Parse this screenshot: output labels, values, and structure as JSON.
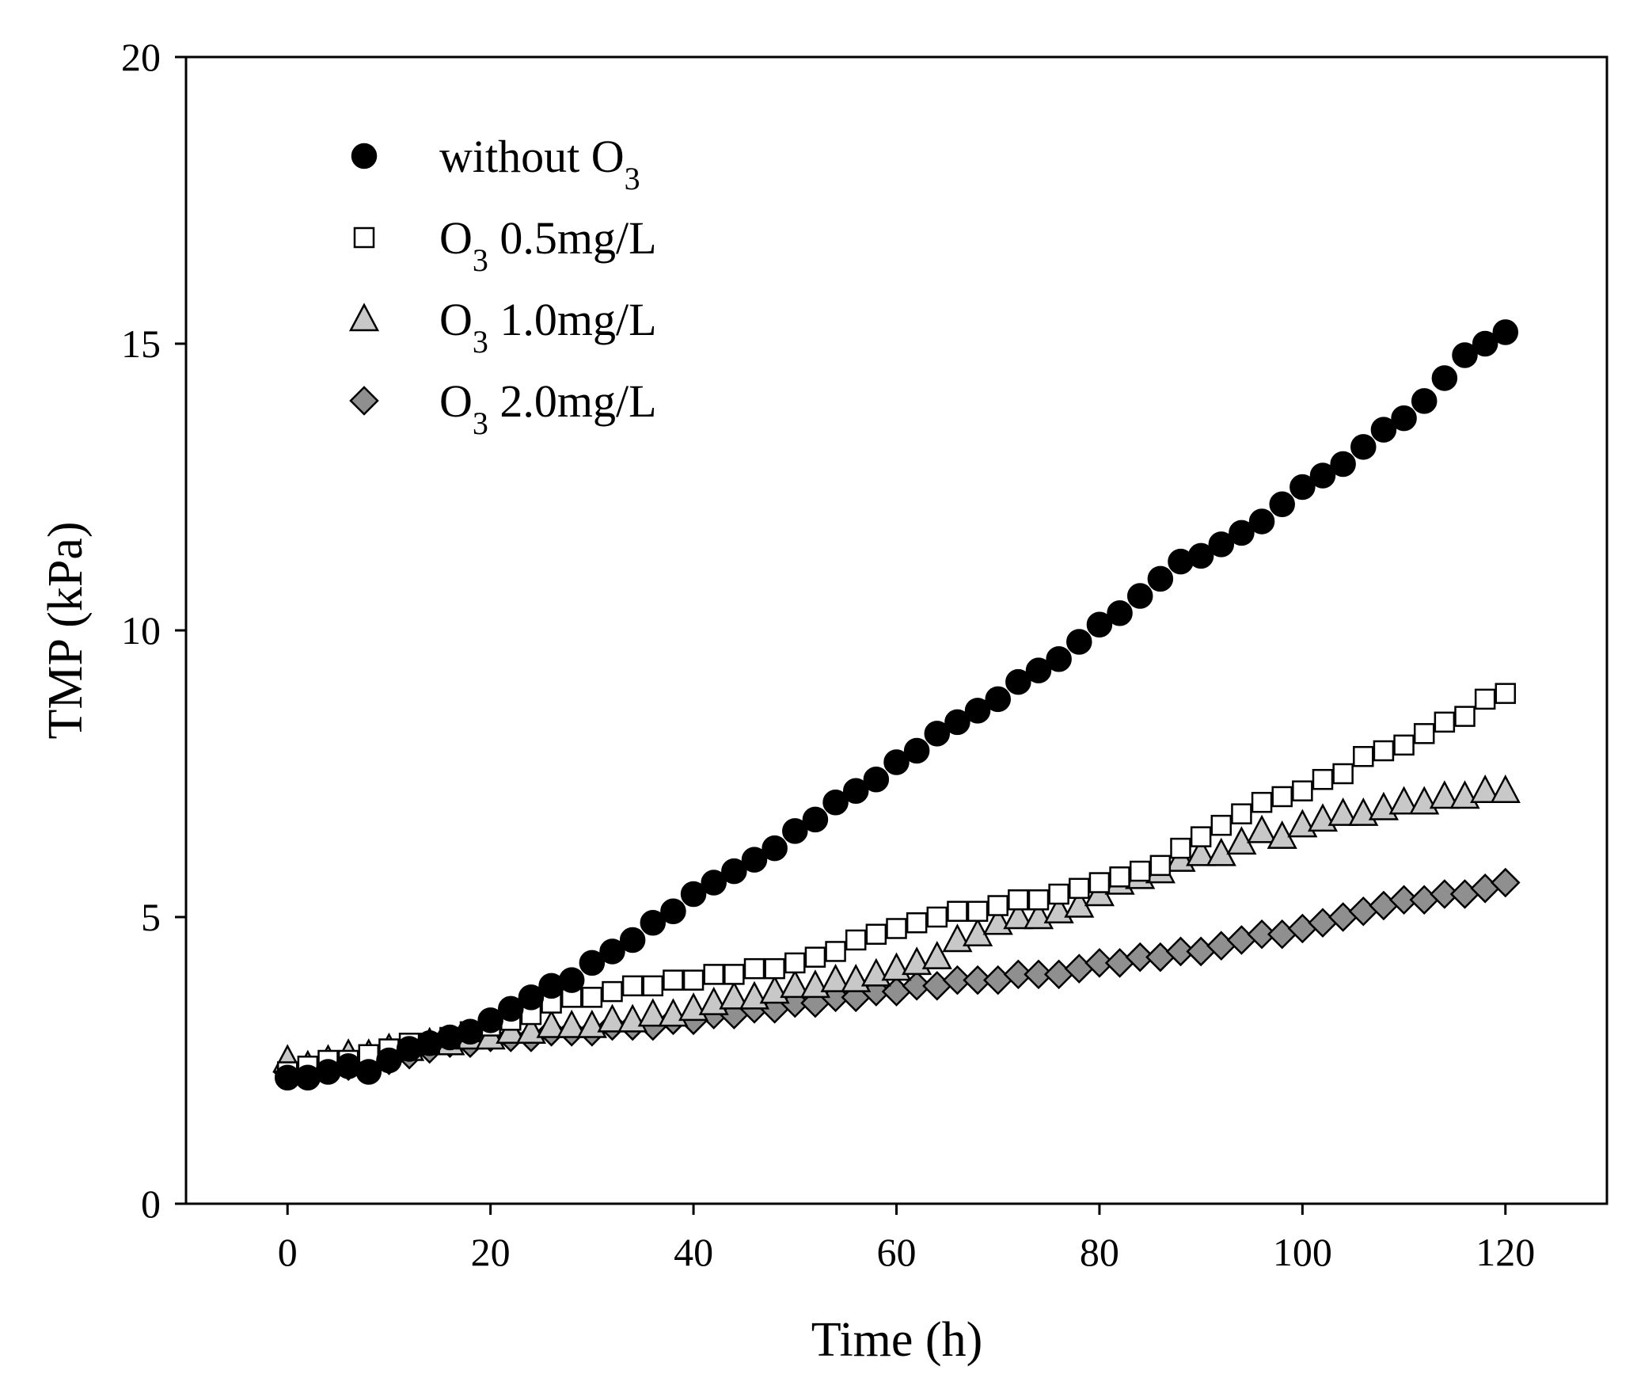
{
  "chart_data": {
    "type": "scatter",
    "xlabel": "Time (h)",
    "ylabel": "TMP (kPa)",
    "xlim": [
      -10,
      130
    ],
    "ylim": [
      0,
      20
    ],
    "xticks": [
      0,
      20,
      40,
      60,
      80,
      100,
      120
    ],
    "yticks": [
      0,
      5,
      10,
      15,
      20
    ],
    "grid": false,
    "legend_position": "top-left",
    "x": [
      0,
      2,
      4,
      6,
      8,
      10,
      12,
      14,
      16,
      18,
      20,
      22,
      24,
      26,
      28,
      30,
      32,
      34,
      36,
      38,
      40,
      42,
      44,
      46,
      48,
      50,
      52,
      54,
      56,
      58,
      60,
      62,
      64,
      66,
      68,
      70,
      72,
      74,
      76,
      78,
      80,
      82,
      84,
      86,
      88,
      90,
      92,
      94,
      96,
      98,
      100,
      102,
      104,
      106,
      108,
      110,
      112,
      114,
      116,
      118,
      120
    ],
    "series": [
      {
        "name": "without O",
        "name_sub": "3",
        "marker": "circle",
        "fill": "#000000",
        "values": [
          2.2,
          2.2,
          2.3,
          2.4,
          2.3,
          2.5,
          2.7,
          2.8,
          2.9,
          3.0,
          3.2,
          3.4,
          3.6,
          3.8,
          3.9,
          4.2,
          4.4,
          4.6,
          4.9,
          5.1,
          5.4,
          5.6,
          5.8,
          6.0,
          6.2,
          6.5,
          6.7,
          7.0,
          7.2,
          7.4,
          7.7,
          7.9,
          8.2,
          8.4,
          8.6,
          8.8,
          9.1,
          9.3,
          9.5,
          9.8,
          10.1,
          10.3,
          10.6,
          10.9,
          11.2,
          11.3,
          11.5,
          11.7,
          11.9,
          12.2,
          12.5,
          12.7,
          12.9,
          13.2,
          13.5,
          13.7,
          14.0,
          14.4,
          14.8,
          15.0,
          15.2
        ]
      },
      {
        "name": "O",
        "name_sub": "3",
        "name_suffix": " 0.5mg/L",
        "marker": "square",
        "fill": "#ffffff",
        "values": [
          2.3,
          2.4,
          2.5,
          2.5,
          2.6,
          2.7,
          2.8,
          2.8,
          2.9,
          3.0,
          3.1,
          3.2,
          3.3,
          3.5,
          3.6,
          3.6,
          3.7,
          3.8,
          3.8,
          3.9,
          3.9,
          4.0,
          4.0,
          4.1,
          4.1,
          4.2,
          4.3,
          4.4,
          4.6,
          4.7,
          4.8,
          4.9,
          5.0,
          5.1,
          5.1,
          5.2,
          5.3,
          5.3,
          5.4,
          5.5,
          5.6,
          5.7,
          5.8,
          5.9,
          6.2,
          6.4,
          6.6,
          6.8,
          7.0,
          7.1,
          7.2,
          7.4,
          7.5,
          7.8,
          7.9,
          8.0,
          8.2,
          8.4,
          8.5,
          8.8,
          8.9
        ]
      },
      {
        "name": "O",
        "name_sub": "3",
        "name_suffix": " 1.0mg/L",
        "marker": "triangle",
        "fill": "#c8c8c8",
        "values": [
          2.5,
          2.4,
          2.5,
          2.6,
          2.6,
          2.7,
          2.7,
          2.8,
          2.8,
          2.9,
          2.9,
          3.0,
          3.0,
          3.1,
          3.1,
          3.1,
          3.2,
          3.2,
          3.3,
          3.3,
          3.4,
          3.5,
          3.6,
          3.6,
          3.7,
          3.8,
          3.8,
          3.9,
          3.9,
          4.0,
          4.1,
          4.2,
          4.3,
          4.6,
          4.7,
          4.9,
          5.0,
          5.0,
          5.1,
          5.2,
          5.4,
          5.6,
          5.7,
          5.8,
          6.0,
          6.1,
          6.1,
          6.3,
          6.5,
          6.4,
          6.6,
          6.7,
          6.8,
          6.8,
          6.9,
          7.0,
          7.0,
          7.1,
          7.1,
          7.2,
          7.2
        ]
      },
      {
        "name": "O",
        "name_sub": "3",
        "name_suffix": " 2.0mg/L",
        "marker": "diamond",
        "fill": "#8f8f8f",
        "values": [
          2.3,
          2.3,
          2.4,
          2.4,
          2.5,
          2.5,
          2.6,
          2.7,
          2.8,
          2.8,
          2.9,
          2.9,
          2.9,
          3.0,
          3.0,
          3.0,
          3.1,
          3.1,
          3.1,
          3.2,
          3.2,
          3.3,
          3.3,
          3.4,
          3.4,
          3.5,
          3.5,
          3.6,
          3.6,
          3.7,
          3.7,
          3.8,
          3.8,
          3.9,
          3.9,
          3.9,
          4.0,
          4.0,
          4.0,
          4.1,
          4.2,
          4.2,
          4.3,
          4.3,
          4.4,
          4.4,
          4.5,
          4.6,
          4.7,
          4.7,
          4.8,
          4.9,
          5.0,
          5.1,
          5.2,
          5.3,
          5.3,
          5.4,
          5.4,
          5.5,
          5.6
        ]
      }
    ]
  }
}
